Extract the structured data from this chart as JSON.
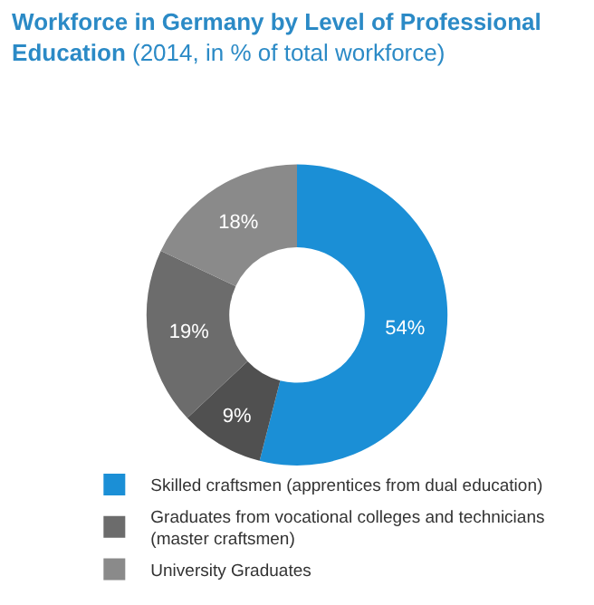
{
  "chart_data": {
    "type": "donut",
    "title": "Workforce in Germany by Level of Professional Education",
    "subtitle": "(2014, in % of total workforce)",
    "categories": [
      "Skilled craftsmen (apprentices from dual education)",
      null,
      "Graduates from vocational colleges and technicians (master craftsmen)",
      "University Graduates"
    ],
    "values": [
      54,
      9,
      19,
      18
    ],
    "value_labels": [
      "54%",
      "9%",
      "19%",
      "18%"
    ],
    "colors": [
      "#1b8fd6",
      "#505050",
      "#6c6c6c",
      "#8a8a8a"
    ],
    "legend": "bottom"
  }
}
